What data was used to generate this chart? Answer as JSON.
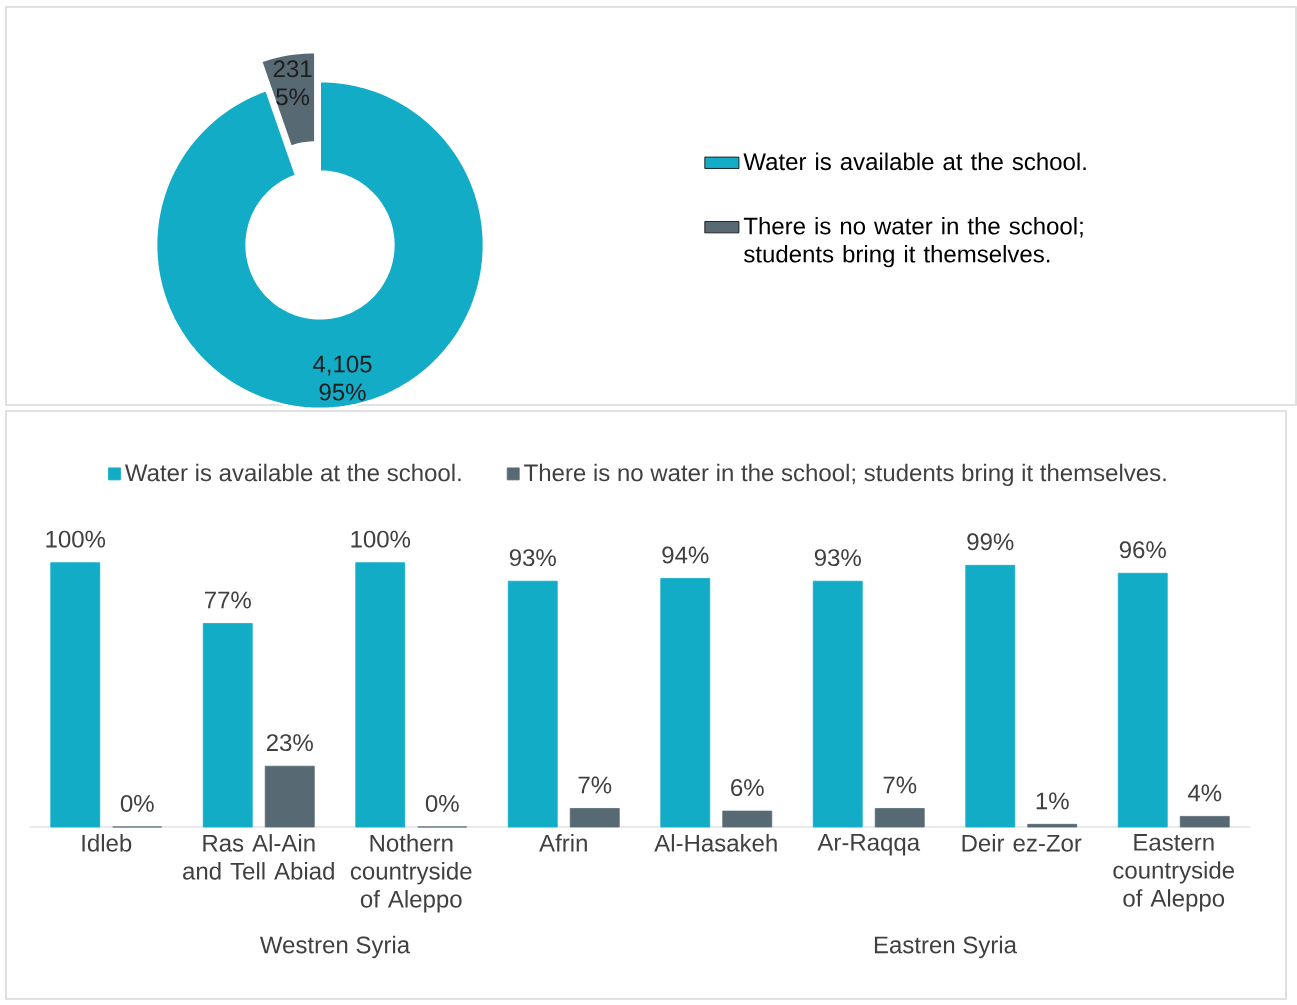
{
  "chart_data": [
    {
      "type": "donut",
      "categories": [
        "Water is available at the school.",
        "There is no water in the school; students bring it themselves."
      ],
      "values": [
        4105,
        231
      ],
      "colors": [
        "#12acc6",
        "#576973"
      ],
      "value_labels": [
        "4,105 95%",
        "231 5%"
      ],
      "legend": "right"
    },
    {
      "type": "bar",
      "categories": [
        "Idleb",
        "Ras Al-Ain and Tell Abiad",
        "Nothern countryside of Aleppo",
        "Afrin",
        "Al-Hasakeh",
        "Ar-Raqqa",
        "Deir ez-Zor",
        "Eastern countryside of Aleppo"
      ],
      "series": [
        {
          "name": "Water is available at the school.",
          "color": "#12acc6",
          "values": [
            100,
            77,
            100,
            93,
            94,
            93,
            99,
            96
          ],
          "value_labels": [
            "100%",
            "77%",
            "100%",
            "93%",
            "94%",
            "93%",
            "99%",
            "96%"
          ]
        },
        {
          "name": "There is no water in the school; students bring it themselves.",
          "color": "#576973",
          "values": [
            0,
            23,
            0,
            7,
            6,
            7,
            1,
            4
          ],
          "value_labels": [
            "0%",
            "23%",
            "0%",
            "7%",
            "6%",
            "7%",
            "1%",
            "4%"
          ]
        }
      ],
      "annotations": [
        "Westren Syria",
        "Eastren Syria"
      ],
      "legend": "top"
    }
  ]
}
